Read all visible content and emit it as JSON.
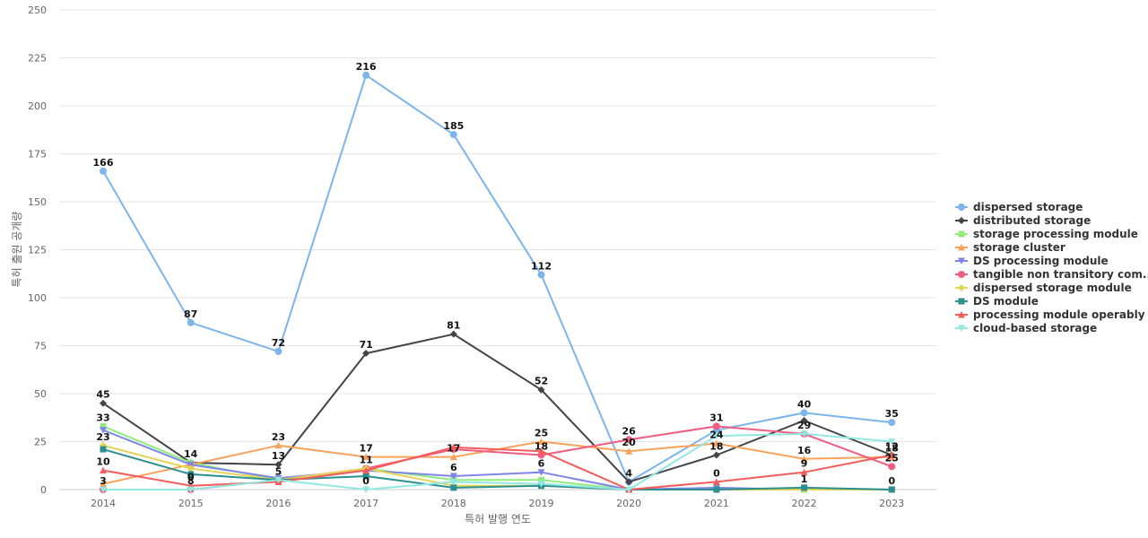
{
  "chart_data": {
    "type": "line",
    "title": "",
    "xlabel": "특허 발행 연도",
    "ylabel": "특허 출원 공개량",
    "ylim": [
      0,
      250
    ],
    "yticks": [
      0,
      25,
      50,
      75,
      100,
      125,
      150,
      175,
      200,
      225,
      250
    ],
    "grid": true,
    "legend_position": "right",
    "categories": [
      "2014",
      "2015",
      "2016",
      "2017",
      "2018",
      "2019",
      "2020",
      "2021",
      "2022",
      "2023"
    ],
    "series": [
      {
        "name": "dispersed storage",
        "color": "#7cb5ec",
        "marker": "circle",
        "values": [
          166,
          87,
          72,
          216,
          185,
          112,
          4,
          31,
          40,
          35
        ]
      },
      {
        "name": "distributed storage",
        "color": "#434348",
        "marker": "diamond",
        "values": [
          45,
          14,
          13,
          71,
          81,
          52,
          4,
          18,
          36,
          18
        ]
      },
      {
        "name": "storage processing module",
        "color": "#90ed7d",
        "marker": "square",
        "values": [
          33,
          14,
          5,
          11,
          5,
          5,
          0,
          0,
          0,
          0
        ]
      },
      {
        "name": "storage cluster",
        "color": "#f7a35c",
        "marker": "triangle",
        "values": [
          3,
          13,
          23,
          17,
          17,
          25,
          20,
          24,
          16,
          17
        ]
      },
      {
        "name": "DS processing module",
        "color": "#8085e9",
        "marker": "triangle-down",
        "values": [
          31,
          13,
          6,
          10,
          7,
          9,
          0,
          1,
          0,
          0
        ]
      },
      {
        "name": "tangible non transitory com...",
        "color": "#f15c80",
        "marker": "circle",
        "values": [
          0,
          0,
          5,
          11,
          21,
          18,
          26,
          33,
          29,
          12
        ]
      },
      {
        "name": "dispersed storage module",
        "color": "#e4d354",
        "marker": "diamond",
        "values": [
          23,
          11,
          5,
          11,
          2,
          2,
          0,
          0,
          0,
          0
        ]
      },
      {
        "name": "DS module",
        "color": "#2b908f",
        "marker": "square",
        "values": [
          21,
          8,
          5,
          7,
          1,
          2,
          0,
          0,
          1,
          0
        ]
      },
      {
        "name": "processing module operably ...",
        "color": "#f45b5b",
        "marker": "triangle",
        "values": [
          10,
          2,
          4,
          10,
          22,
          20,
          0,
          4,
          9,
          18
        ]
      },
      {
        "name": "cloud-based storage",
        "color": "#91e8e1",
        "marker": "triangle-down",
        "values": [
          0,
          0,
          5,
          0,
          4,
          3,
          0,
          28,
          29,
          25
        ]
      }
    ],
    "data_labels": [
      {
        "series": 0,
        "index": 0,
        "text": "166"
      },
      {
        "series": 0,
        "index": 1,
        "text": "87"
      },
      {
        "series": 0,
        "index": 2,
        "text": "72"
      },
      {
        "series": 0,
        "index": 3,
        "text": "216"
      },
      {
        "series": 0,
        "index": 4,
        "text": "185"
      },
      {
        "series": 0,
        "index": 5,
        "text": "112"
      },
      {
        "series": 0,
        "index": 6,
        "text": "4"
      },
      {
        "series": 0,
        "index": 8,
        "text": "40"
      },
      {
        "series": 0,
        "index": 9,
        "text": "35"
      },
      {
        "series": 1,
        "index": 0,
        "text": "45"
      },
      {
        "series": 1,
        "index": 1,
        "text": "14"
      },
      {
        "series": 1,
        "index": 2,
        "text": "13"
      },
      {
        "series": 1,
        "index": 3,
        "text": "71"
      },
      {
        "series": 1,
        "index": 4,
        "text": "81"
      },
      {
        "series": 1,
        "index": 5,
        "text": "52"
      },
      {
        "series": 1,
        "index": 7,
        "text": "18"
      },
      {
        "series": 2,
        "index": 0,
        "text": "33"
      },
      {
        "series": 2,
        "index": 3,
        "text": "11"
      },
      {
        "series": 3,
        "index": 2,
        "text": "23"
      },
      {
        "series": 3,
        "index": 3,
        "text": "17"
      },
      {
        "series": 3,
        "index": 4,
        "text": "17"
      },
      {
        "series": 3,
        "index": 5,
        "text": "25"
      },
      {
        "series": 3,
        "index": 6,
        "text": "20"
      },
      {
        "series": 3,
        "index": 7,
        "text": "24"
      },
      {
        "series": 3,
        "index": 8,
        "text": "16"
      },
      {
        "series": 3,
        "index": 9,
        "text": "18"
      },
      {
        "series": 4,
        "index": 4,
        "text": "6"
      },
      {
        "series": 4,
        "index": 5,
        "text": "6"
      },
      {
        "series": 5,
        "index": 1,
        "text": "8"
      },
      {
        "series": 5,
        "index": 5,
        "text": "18"
      },
      {
        "series": 5,
        "index": 6,
        "text": "26"
      },
      {
        "series": 5,
        "index": 7,
        "text": "31"
      },
      {
        "series": 5,
        "index": 8,
        "text": "29"
      },
      {
        "series": 5,
        "index": 9,
        "text": "25"
      },
      {
        "series": 6,
        "index": 0,
        "text": "23"
      },
      {
        "series": 7,
        "index": 2,
        "text": "5"
      },
      {
        "series": 7,
        "index": 8,
        "text": "1"
      },
      {
        "series": 7,
        "index": 9,
        "text": "0"
      },
      {
        "series": 8,
        "index": 0,
        "text": "10"
      },
      {
        "series": 8,
        "index": 1,
        "text": "0"
      },
      {
        "series": 8,
        "index": 7,
        "text": "0"
      },
      {
        "series": 8,
        "index": 8,
        "text": "9"
      },
      {
        "series": 8,
        "index": 9,
        "text": "12"
      },
      {
        "series": 9,
        "index": 0,
        "text": "3"
      },
      {
        "series": 9,
        "index": 3,
        "text": "0"
      }
    ]
  }
}
